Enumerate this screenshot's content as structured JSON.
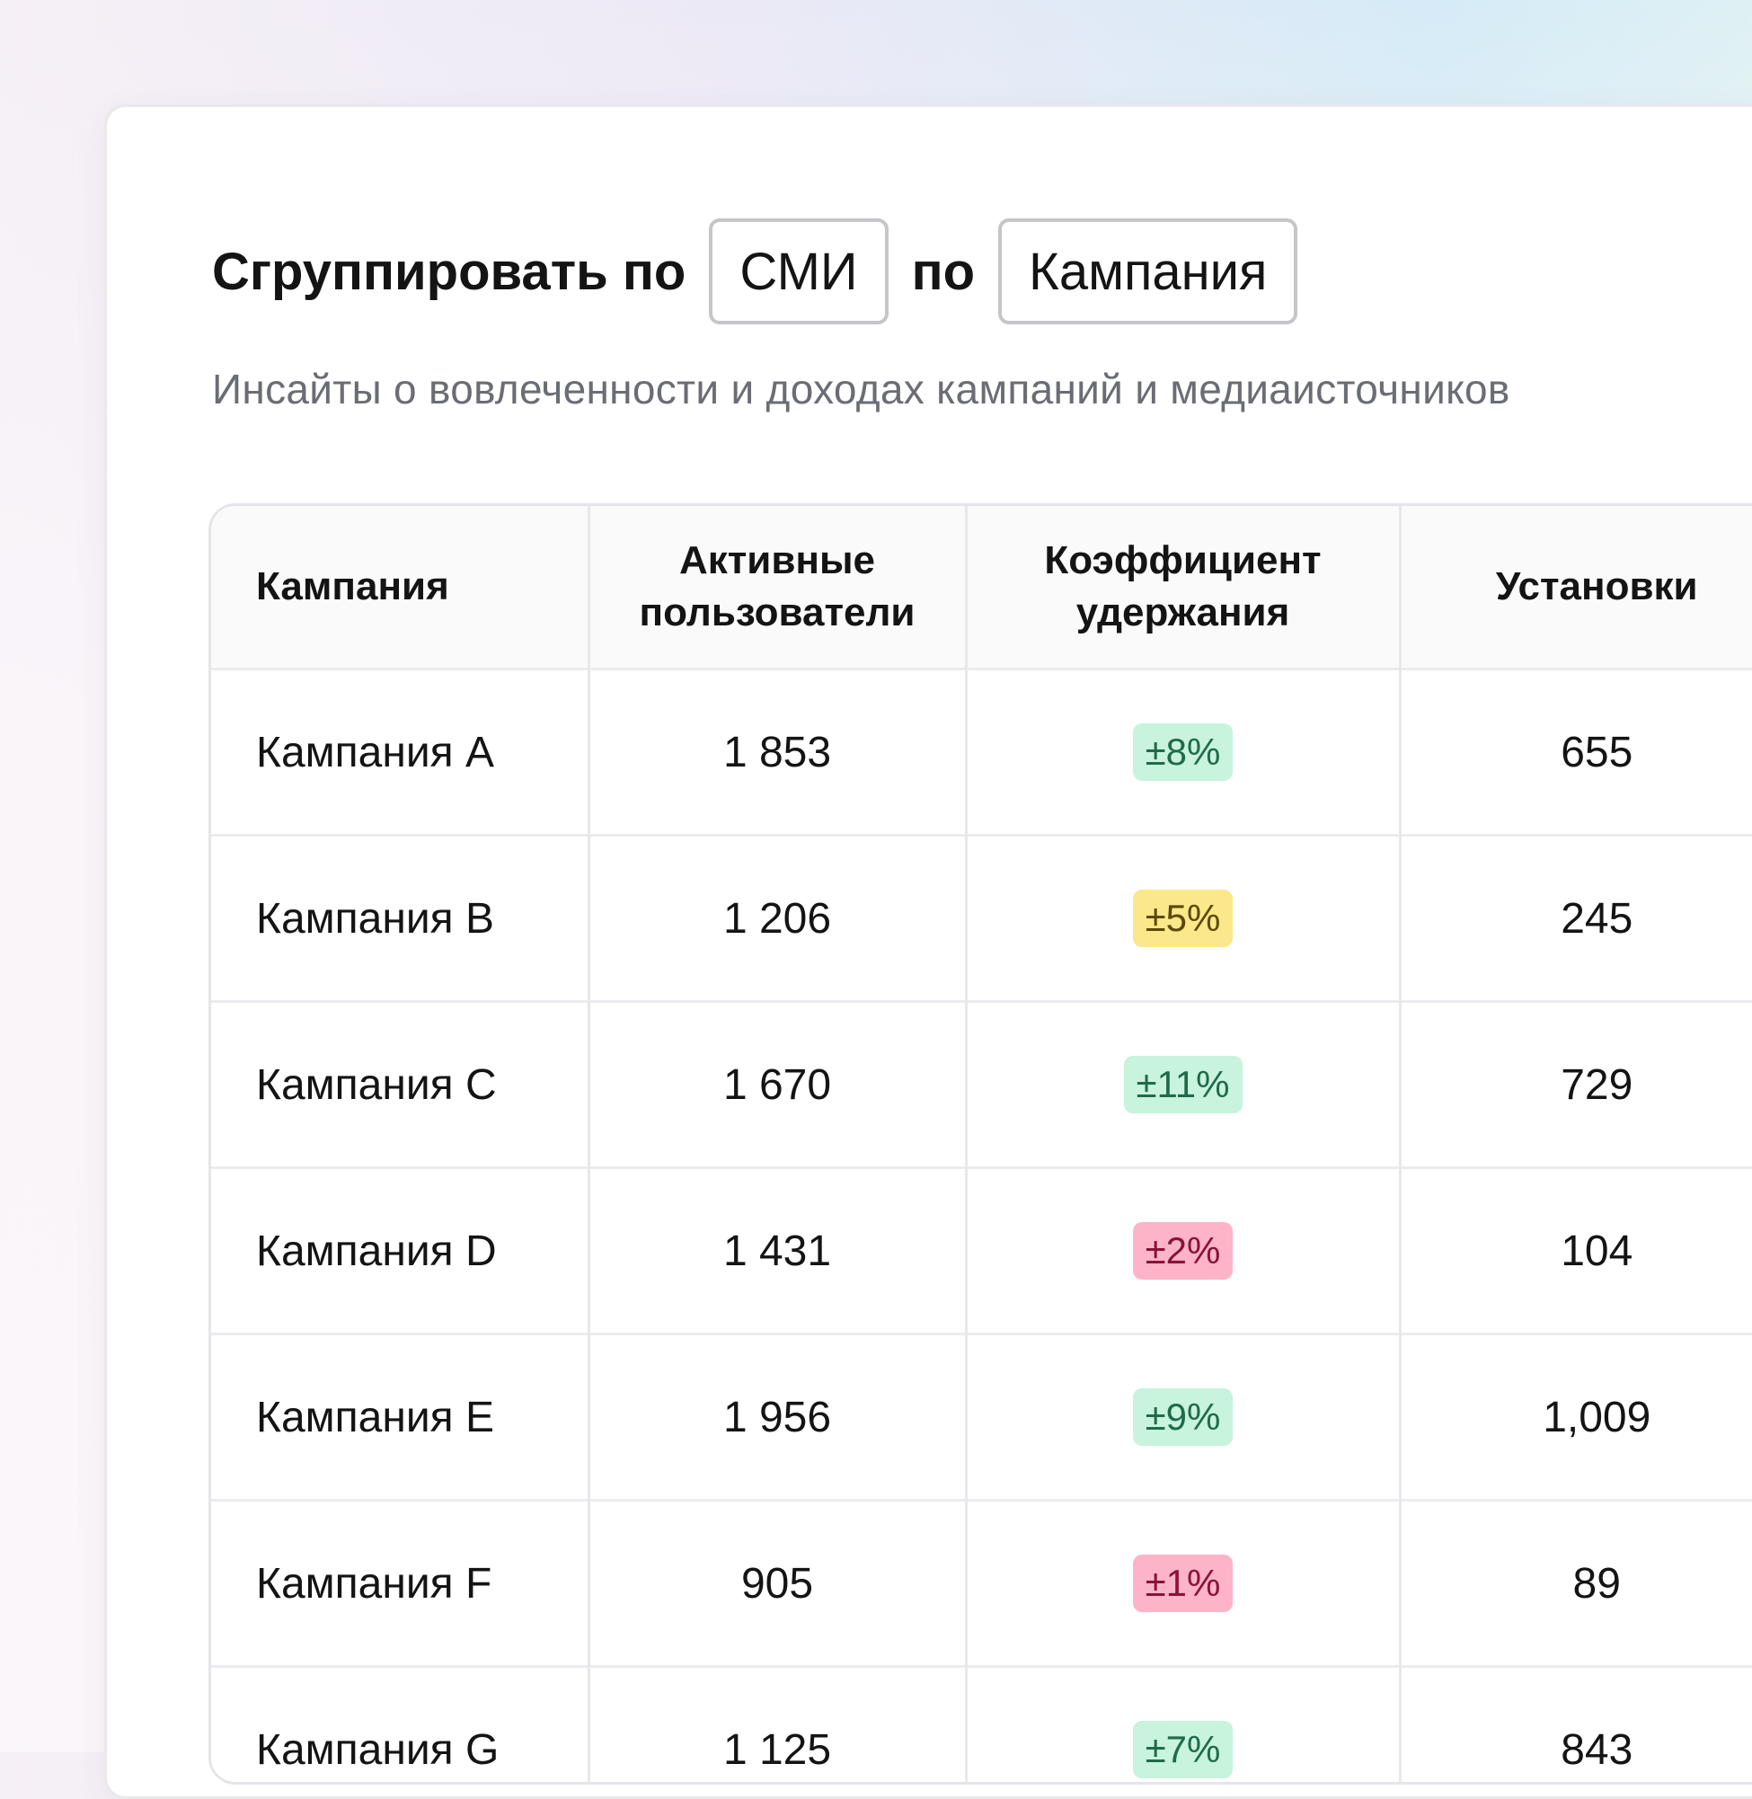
{
  "header": {
    "group_label": "Сгруппировать по",
    "select_1": "СМИ",
    "joiner": "по",
    "select_2": "Кампания",
    "subtitle": "Инсайты о вовлеченности и доходах кампаний и медиаисточников"
  },
  "table": {
    "columns": [
      "Кампания",
      "Активные пользователи",
      "Коэффициент удержания",
      "Установки"
    ],
    "rows": [
      {
        "campaign": "Кампания A",
        "users": "1 853",
        "retention": "±8%",
        "installs": "655"
      },
      {
        "campaign": "Кампания B",
        "users": "1 206",
        "retention": "±5%",
        "installs": "245"
      },
      {
        "campaign": "Кампания C",
        "users": "1 670",
        "retention": "±11%",
        "installs": "729"
      },
      {
        "campaign": "Кампания D",
        "users": "1 431",
        "retention": "±2%",
        "installs": "104"
      },
      {
        "campaign": "Кампания E",
        "users": "1 956",
        "retention": "±9%",
        "installs": "1,009"
      },
      {
        "campaign": "Кампания F",
        "users": "905",
        "retention": "±1%",
        "installs": "89"
      },
      {
        "campaign": "Кампания G",
        "users": "1 125",
        "retention": "±7%",
        "installs": "843"
      }
    ]
  },
  "colors": {
    "badge_green": "#c8f3dd",
    "badge_yellow": "#fbe88a",
    "badge_red": "#fdb4c8"
  }
}
